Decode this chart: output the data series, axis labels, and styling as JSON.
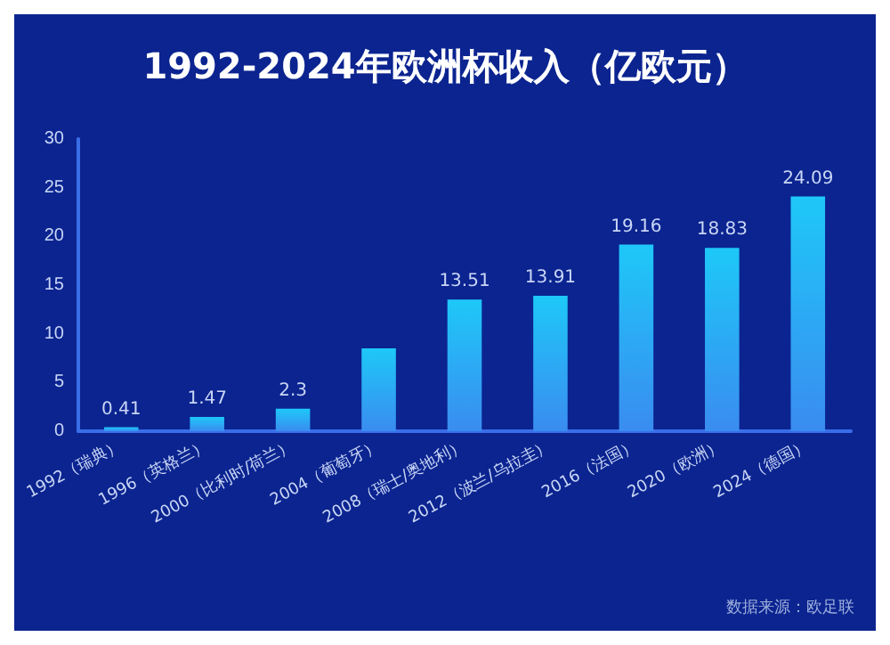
{
  "chart_data": {
    "type": "bar",
    "title": "1992-2024年欧洲杯收入（亿欧元）",
    "categories": [
      "1992（瑞典）",
      "1996（英格兰）",
      "2000（比利时/荷兰）",
      "2004（葡萄牙）",
      "2008（瑞士/奥地利）",
      "2012（波兰/乌拉圭）",
      "2016（法国）",
      "2020（欧洲）",
      "2024（德国）"
    ],
    "values": [
      0.41,
      1.47,
      2.3,
      8.5,
      13.51,
      13.91,
      19.16,
      18.83,
      24.09
    ],
    "value_labels": [
      "0.41",
      "1.47",
      "2.3",
      null,
      "13.51",
      "13.91",
      "19.16",
      "18.83",
      "24.09"
    ],
    "color": "#1ec8f8",
    "ylim": [
      0,
      30
    ],
    "yticks": [
      0,
      5,
      10,
      15,
      20,
      25,
      30
    ],
    "grid": false,
    "annotations": [
      "数据来源：欧足联"
    ]
  }
}
